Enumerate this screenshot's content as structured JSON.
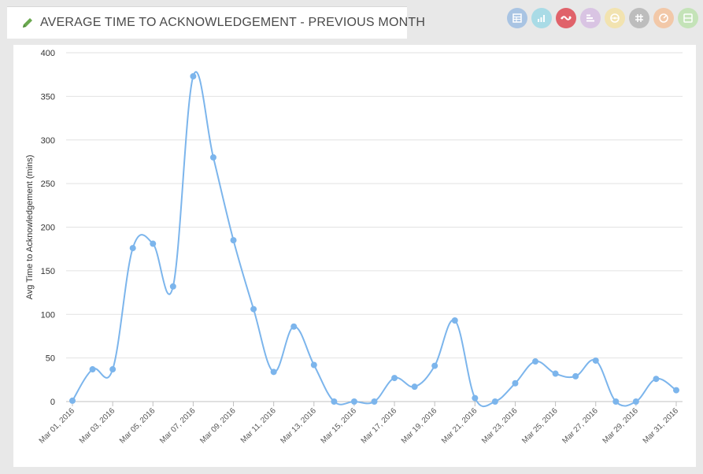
{
  "header": {
    "title": "AVERAGE TIME TO ACKNOWLEDGEMENT - PREVIOUS MONTH"
  },
  "toolbar": {
    "buttons": [
      {
        "name": "table-view-button",
        "icon": "table-icon",
        "color": "#a9c4e3",
        "active": false
      },
      {
        "name": "bar-chart-button",
        "icon": "bar-chart-icon",
        "color": "#a9dbe6",
        "active": false
      },
      {
        "name": "line-chart-button",
        "icon": "line-chart-icon",
        "color": "#e0626a",
        "active": true
      },
      {
        "name": "horizontal-bar-button",
        "icon": "horizontal-bar-icon",
        "color": "#d9c4e3",
        "active": false
      },
      {
        "name": "pie-chart-button",
        "icon": "pie-chart-icon",
        "color": "#f2e3b0",
        "active": false
      },
      {
        "name": "pivot-button",
        "icon": "hash-icon",
        "color": "#bdbdbd",
        "active": false
      },
      {
        "name": "gauge-button",
        "icon": "gauge-icon",
        "color": "#f2c8a8",
        "active": false
      },
      {
        "name": "card-view-button",
        "icon": "card-icon",
        "color": "#c4e3b8",
        "active": false
      }
    ]
  },
  "chart_data": {
    "type": "line",
    "title": "",
    "xlabel": "",
    "ylabel": "Avg Time to Acknowledgement (mins)",
    "ylim": [
      0,
      400
    ],
    "yticks": [
      0,
      50,
      100,
      150,
      200,
      250,
      300,
      350,
      400
    ],
    "grid": true,
    "smooth": true,
    "line_color": "#7cb5ec",
    "x": [
      "Mar 01, 2016",
      "Mar 02, 2016",
      "Mar 03, 2016",
      "Mar 04, 2016",
      "Mar 05, 2016",
      "Mar 06, 2016",
      "Mar 07, 2016",
      "Mar 08, 2016",
      "Mar 09, 2016",
      "Mar 10, 2016",
      "Mar 11, 2016",
      "Mar 12, 2016",
      "Mar 13, 2016",
      "Mar 14, 2016",
      "Mar 15, 2016",
      "Mar 16, 2016",
      "Mar 17, 2016",
      "Mar 18, 2016",
      "Mar 19, 2016",
      "Mar 20, 2016",
      "Mar 21, 2016",
      "Mar 22, 2016",
      "Mar 23, 2016",
      "Mar 24, 2016",
      "Mar 25, 2016",
      "Mar 26, 2016",
      "Mar 27, 2016",
      "Mar 28, 2016",
      "Mar 29, 2016",
      "Mar 30, 2016",
      "Mar 31, 2016"
    ],
    "x_tick_labels": [
      "Mar 01, 2016",
      "Mar 03, 2016",
      "Mar 05, 2016",
      "Mar 07, 2016",
      "Mar 09, 2016",
      "Mar 11, 2016",
      "Mar 13, 2016",
      "Mar 15, 2016",
      "Mar 17, 2016",
      "Mar 19, 2016",
      "Mar 21, 2016",
      "Mar 23, 2016",
      "Mar 25, 2016",
      "Mar 27, 2016",
      "Mar 29, 2016",
      "Mar 31, 2016"
    ],
    "series": [
      {
        "values": [
          1,
          37,
          37,
          176,
          181,
          132,
          373,
          280,
          185,
          106,
          34,
          86,
          42,
          0,
          0,
          0,
          27,
          17,
          41,
          93,
          4,
          0,
          21,
          46,
          32,
          29,
          47,
          0,
          0,
          26,
          13
        ]
      }
    ]
  }
}
